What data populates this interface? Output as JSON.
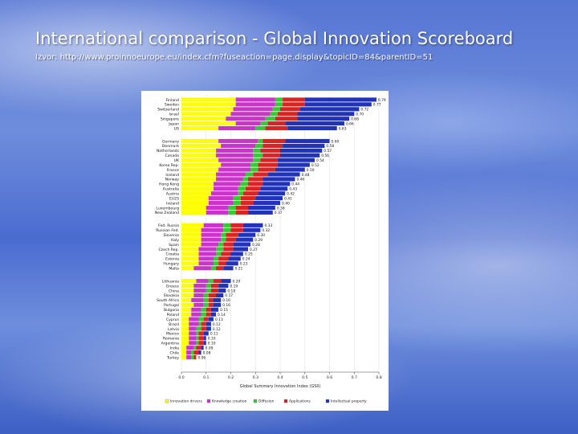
{
  "slide": {
    "title": "International comparison - Global Innovation Scoreboard",
    "source": "Izvor: http://www.proinnoeurope.eu/index.cfm?fuseaction=page.display&topicID=84&parentID=51"
  },
  "chart_data": {
    "type": "bar",
    "orientation": "horizontal",
    "stacked": true,
    "xlabel": "Global Summary Innovation Index (GSII)",
    "xlim": [
      0,
      0.8
    ],
    "xticks": [
      "0.0",
      "0.1",
      "0.2",
      "0.3",
      "0.4",
      "0.5",
      "0.6",
      "0.7",
      "0.8"
    ],
    "legend_position": "bottom",
    "groups": [
      {
        "rows": [
          {
            "country": "Finland",
            "total": 0.79,
            "segments": [
              0.22,
              0.16,
              0.03,
              0.09,
              0.29
            ]
          },
          {
            "country": "Sweden",
            "total": 0.77,
            "segments": [
              0.22,
              0.16,
              0.03,
              0.09,
              0.27
            ]
          },
          {
            "country": "Switzerland",
            "total": 0.72,
            "segments": [
              0.21,
              0.16,
              0.03,
              0.08,
              0.24
            ]
          },
          {
            "country": "Israel",
            "total": 0.7,
            "segments": [
              0.2,
              0.16,
              0.03,
              0.08,
              0.23
            ]
          },
          {
            "country": "Singapore",
            "total": 0.68,
            "segments": [
              0.18,
              0.16,
              0.04,
              0.09,
              0.21
            ]
          },
          {
            "country": "Japan",
            "total": 0.66,
            "segments": [
              0.22,
              0.1,
              0.03,
              0.07,
              0.24
            ]
          },
          {
            "country": "US",
            "total": 0.63,
            "segments": [
              0.15,
              0.15,
              0.04,
              0.09,
              0.2
            ]
          }
        ]
      },
      {
        "rows": [
          {
            "country": "Germany",
            "total": 0.6,
            "segments": [
              0.15,
              0.16,
              0.02,
              0.09,
              0.18
            ]
          },
          {
            "country": "Denmark",
            "total": 0.58,
            "segments": [
              0.16,
              0.14,
              0.03,
              0.08,
              0.17
            ]
          },
          {
            "country": "Netherlands",
            "total": 0.57,
            "segments": [
              0.14,
              0.15,
              0.03,
              0.08,
              0.17
            ]
          },
          {
            "country": "Canada",
            "total": 0.56,
            "segments": [
              0.14,
              0.15,
              0.04,
              0.07,
              0.16
            ]
          },
          {
            "country": "UK",
            "total": 0.54,
            "segments": [
              0.15,
              0.14,
              0.03,
              0.07,
              0.15
            ]
          },
          {
            "country": "Korea Rep.",
            "total": 0.52,
            "segments": [
              0.16,
              0.12,
              0.03,
              0.08,
              0.13
            ]
          },
          {
            "country": "France",
            "total": 0.5,
            "segments": [
              0.15,
              0.13,
              0.03,
              0.07,
              0.12
            ]
          },
          {
            "country": "Iceland",
            "total": 0.48,
            "segments": [
              0.14,
              0.12,
              0.03,
              0.06,
              0.13
            ]
          },
          {
            "country": "Norway",
            "total": 0.46,
            "segments": [
              0.14,
              0.11,
              0.02,
              0.06,
              0.13
            ]
          },
          {
            "country": "Hong Kong",
            "total": 0.44,
            "segments": [
              0.13,
              0.11,
              0.03,
              0.06,
              0.11
            ]
          },
          {
            "country": "Australia",
            "total": 0.43,
            "segments": [
              0.13,
              0.1,
              0.03,
              0.06,
              0.11
            ]
          },
          {
            "country": "Austria",
            "total": 0.42,
            "segments": [
              0.12,
              0.11,
              0.02,
              0.06,
              0.11
            ]
          },
          {
            "country": "EU25",
            "total": 0.41,
            "segments": [
              0.11,
              0.1,
              0.03,
              0.06,
              0.11
            ]
          },
          {
            "country": "Ireland",
            "total": 0.4,
            "segments": [
              0.11,
              0.1,
              0.03,
              0.05,
              0.11
            ]
          },
          {
            "country": "Luxembourg",
            "total": 0.38,
            "segments": [
              0.1,
              0.09,
              0.03,
              0.05,
              0.11
            ]
          },
          {
            "country": "New Zealand",
            "total": 0.37,
            "segments": [
              0.1,
              0.09,
              0.03,
              0.05,
              0.1
            ]
          }
        ]
      },
      {
        "rows": [
          {
            "country": "Fed. Russia",
            "total": 0.33,
            "segments": [
              0.09,
              0.08,
              0.03,
              0.05,
              0.08
            ]
          },
          {
            "country": "Russian Fed.",
            "total": 0.32,
            "segments": [
              0.08,
              0.09,
              0.03,
              0.05,
              0.07
            ]
          },
          {
            "country": "Slovenia",
            "total": 0.3,
            "segments": [
              0.08,
              0.08,
              0.02,
              0.05,
              0.07
            ]
          },
          {
            "country": "Italy",
            "total": 0.29,
            "segments": [
              0.08,
              0.08,
              0.02,
              0.04,
              0.07
            ]
          },
          {
            "country": "Spain",
            "total": 0.28,
            "segments": [
              0.08,
              0.07,
              0.02,
              0.04,
              0.07
            ]
          },
          {
            "country": "Czech Rep.",
            "total": 0.27,
            "segments": [
              0.07,
              0.07,
              0.03,
              0.04,
              0.06
            ]
          },
          {
            "country": "Croatia",
            "total": 0.25,
            "segments": [
              0.07,
              0.07,
              0.02,
              0.04,
              0.05
            ]
          },
          {
            "country": "Estonia",
            "total": 0.24,
            "segments": [
              0.07,
              0.06,
              0.02,
              0.04,
              0.05
            ]
          },
          {
            "country": "Hungary",
            "total": 0.23,
            "segments": [
              0.07,
              0.06,
              0.02,
              0.03,
              0.05
            ]
          },
          {
            "country": "Malta",
            "total": 0.21,
            "segments": [
              0.05,
              0.07,
              0.02,
              0.03,
              0.04
            ]
          }
        ]
      },
      {
        "rows": [
          {
            "country": "Lithuania",
            "total": 0.2,
            "segments": [
              0.06,
              0.05,
              0.02,
              0.03,
              0.04
            ]
          },
          {
            "country": "Greece",
            "total": 0.19,
            "segments": [
              0.05,
              0.05,
              0.02,
              0.03,
              0.04
            ]
          },
          {
            "country": "China",
            "total": 0.18,
            "segments": [
              0.05,
              0.05,
              0.02,
              0.03,
              0.03
            ]
          },
          {
            "country": "Slovakia",
            "total": 0.17,
            "segments": [
              0.05,
              0.04,
              0.02,
              0.03,
              0.03
            ]
          },
          {
            "country": "South Africa",
            "total": 0.16,
            "segments": [
              0.04,
              0.05,
              0.02,
              0.02,
              0.03
            ]
          },
          {
            "country": "Portugal",
            "total": 0.16,
            "segments": [
              0.05,
              0.04,
              0.02,
              0.02,
              0.03
            ]
          },
          {
            "country": "Bulgaria",
            "total": 0.15,
            "segments": [
              0.04,
              0.04,
              0.02,
              0.02,
              0.03
            ]
          },
          {
            "country": "Poland",
            "total": 0.14,
            "segments": [
              0.04,
              0.04,
              0.02,
              0.02,
              0.02
            ]
          },
          {
            "country": "Cyprus",
            "total": 0.13,
            "segments": [
              0.03,
              0.04,
              0.02,
              0.02,
              0.02
            ]
          },
          {
            "country": "Brazil",
            "total": 0.12,
            "segments": [
              0.03,
              0.04,
              0.01,
              0.02,
              0.02
            ]
          },
          {
            "country": "Latvia",
            "total": 0.12,
            "segments": [
              0.03,
              0.03,
              0.02,
              0.02,
              0.02
            ]
          },
          {
            "country": "Mexico",
            "total": 0.11,
            "segments": [
              0.03,
              0.03,
              0.01,
              0.02,
              0.02
            ]
          },
          {
            "country": "Romania",
            "total": 0.1,
            "segments": [
              0.03,
              0.03,
              0.01,
              0.02,
              0.01
            ]
          },
          {
            "country": "Argentina",
            "total": 0.1,
            "segments": [
              0.03,
              0.03,
              0.01,
              0.02,
              0.01
            ]
          },
          {
            "country": "India",
            "total": 0.09,
            "segments": [
              0.02,
              0.03,
              0.01,
              0.02,
              0.01
            ]
          },
          {
            "country": "Chile",
            "total": 0.08,
            "segments": [
              0.02,
              0.02,
              0.01,
              0.02,
              0.01
            ]
          },
          {
            "country": "Turkey",
            "total": 0.06,
            "segments": [
              0.02,
              0.02,
              0.01,
              0.01,
              0.0
            ]
          }
        ]
      }
    ],
    "series": [
      {
        "name": "Innovation drivers",
        "color": "#ffff00"
      },
      {
        "name": "Knowledge creation",
        "color": "#cc33cc"
      },
      {
        "name": "Diffusion",
        "color": "#33cc33"
      },
      {
        "name": "Applications",
        "color": "#dd2222"
      },
      {
        "name": "Intellectual property",
        "color": "#2233bb"
      }
    ]
  }
}
